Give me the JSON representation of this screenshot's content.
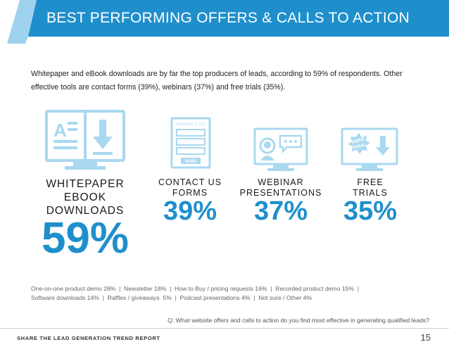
{
  "header": {
    "title": "BEST PERFORMING OFFERS & CALLS TO ACTION",
    "color": "#1f8fcc"
  },
  "intro": {
    "text": "Whitepaper and eBook downloads are by far the top producers of leads, according to 59% of respondents. Other effective tools are contact forms (39%), webinars (37%) and free trials (35%)."
  },
  "offers": [
    {
      "label_lines": [
        "WHITEPAPER",
        "EBOOK",
        "DOWNLOADS"
      ],
      "percent": "59%",
      "percent_value": 59,
      "icon": "whitepaper-download-icon"
    },
    {
      "label_lines": [
        "CONTACT US",
        "FORMS"
      ],
      "percent": "39%",
      "percent_value": 39,
      "icon": "contact-form-icon",
      "icon_text": {
        "title": "CONTACT US",
        "button": "SEND"
      }
    },
    {
      "label_lines": [
        "WEBINAR",
        "PRESENTATIONS"
      ],
      "percent": "37%",
      "percent_value": 37,
      "icon": "webinar-icon"
    },
    {
      "label_lines": [
        "FREE",
        "TRIALS"
      ],
      "percent": "35%",
      "percent_value": 35,
      "icon": "free-trial-icon",
      "icon_text": {
        "badge_line1": "FREE",
        "badge_line2": "TRIAL"
      }
    }
  ],
  "others": {
    "line1": "One-on-one product demo 28%  |  Newsletter 18%  |  How to Buy / pricing requests 16%  |  Recorded product demo 15%  |",
    "line2": "Software downloads 14%  |  Raffles / giveaways  5%  |  Podcast presentations 4%  |  Not sure / Other 4%"
  },
  "question": "Q: What website offers and calls to action do you find most effective in generating qualified leads?",
  "footer": {
    "left": "SHARE THE LEAD GENERATION TREND REPORT",
    "page_number": "15"
  },
  "colors": {
    "accent": "#1f8fcc",
    "icon_light": "#a9d8f0",
    "icon_fill": "#cfeaf8"
  }
}
